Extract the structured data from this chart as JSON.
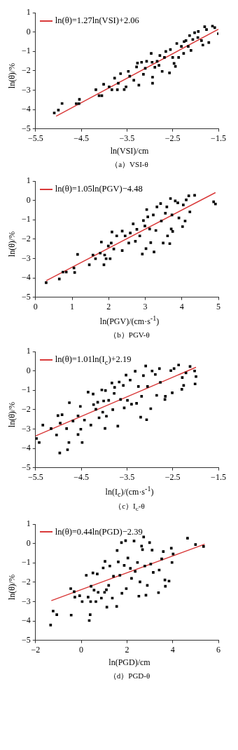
{
  "chart_data": [
    {
      "type": "scatter",
      "xlabel": "ln(VSI)/cm",
      "ylabel": "ln(θ)/%",
      "annotations": [
        "（a）VSI-θ"
      ],
      "xlim": [
        -5.5,
        -1.5
      ],
      "xticks": [
        -5.5,
        -4.5,
        -3.5,
        -2.5,
        -1.5
      ],
      "ylim": [
        -5,
        1
      ],
      "yticks": [
        -5,
        -4,
        -3,
        -2,
        -1,
        0,
        1
      ],
      "legend": "top left",
      "grid": false,
      "marker": "square",
      "series": [
        {
          "type": "scatter",
          "color": "#000000",
          "x": [
            -5.09,
            -5.0,
            -4.92,
            -4.61,
            -4.54,
            -4.55,
            -4.18,
            -4.11,
            -4.05,
            -4.01,
            -3.89,
            -3.83,
            -3.77,
            -3.71,
            -3.69,
            -3.64,
            -3.56,
            -3.52,
            -3.47,
            -3.44,
            -3.35,
            -3.29,
            -3.27,
            -3.24,
            -3.18,
            -3.14,
            -3.1,
            -2.97,
            -2.95,
            -2.94,
            -2.94,
            -2.89,
            -2.84,
            -2.78,
            -2.73,
            -2.68,
            -2.65,
            -2.57,
            -2.55,
            -2.47,
            -2.44,
            -2.41,
            -2.37,
            -2.31,
            -2.26,
            -2.21,
            -2.16,
            -2.13,
            -2.1,
            -2.02,
            -1.95,
            -1.87,
            -1.84,
            -1.8,
            -1.76,
            -1.71,
            -1.63,
            -1.58,
            -1.5,
            -1.94,
            -2.06,
            -2.25,
            -2.5,
            -2.8,
            -3.07
          ],
          "values": [
            -4.18,
            -4.03,
            -3.69,
            -3.7,
            -3.48,
            -3.7,
            -2.98,
            -3.29,
            -3.29,
            -2.7,
            -2.83,
            -2.98,
            -2.38,
            -2.98,
            -2.64,
            -2.15,
            -2.97,
            -2.83,
            -2.03,
            -2.28,
            -2.49,
            -1.8,
            -1.6,
            -2.74,
            -1.56,
            -2.18,
            -1.87,
            -1.1,
            -1.56,
            -2.64,
            -2.33,
            -1.82,
            -1.51,
            -1.21,
            -2.03,
            -1.31,
            -1.0,
            -2.11,
            -0.9,
            -1.62,
            -1.77,
            -0.59,
            -1.31,
            -0.74,
            -1.1,
            -0.44,
            -0.74,
            -0.18,
            -0.95,
            -0.03,
            -0.28,
            -0.44,
            -0.67,
            0.28,
            0.13,
            -0.54,
            0.31,
            0.23,
            -0.08,
            0.03,
            -0.38,
            -0.49,
            -1.31,
            -1.72,
            -1.51
          ]
        },
        {
          "type": "line",
          "name": "ln(θ)=1.27ln(VSI)+2.06",
          "color": "#d93a3a",
          "marker": "none",
          "x": [
            -5.05,
            -1.5
          ],
          "values": [
            -4.35,
            0.15
          ]
        }
      ]
    },
    {
      "type": "scatter",
      "xlabel": "ln(PGV)/(cm·s$^{-1}$)",
      "ylabel": "ln(θ)/%",
      "annotations": [
        "（b）PGV-θ"
      ],
      "xlim": [
        0,
        5
      ],
      "xticks": [
        0,
        1,
        2,
        3,
        4,
        5
      ],
      "ylim": [
        -5,
        1
      ],
      "yticks": [
        -5,
        -4,
        -3,
        -2,
        -1,
        0,
        1
      ],
      "legend": "top left",
      "grid": false,
      "marker": "square",
      "series": [
        {
          "type": "scatter",
          "color": "#000000",
          "x": [
            0.29,
            0.65,
            0.75,
            0.84,
            1.05,
            1.07,
            1.15,
            1.47,
            1.57,
            1.64,
            1.77,
            1.8,
            1.87,
            1.89,
            1.93,
            1.99,
            2.04,
            2.07,
            2.09,
            2.14,
            2.22,
            2.37,
            2.37,
            2.45,
            2.55,
            2.59,
            2.67,
            2.73,
            2.77,
            2.85,
            2.92,
            2.95,
            2.99,
            3.02,
            3.04,
            3.07,
            3.12,
            3.15,
            3.22,
            3.24,
            3.29,
            3.32,
            3.42,
            3.44,
            3.49,
            3.55,
            3.59,
            3.61,
            3.67,
            3.71,
            3.73,
            3.75,
            3.69,
            3.82,
            3.89,
            3.92,
            4.02,
            4.04,
            4.09,
            4.12,
            4.19,
            4.22,
            4.35,
            4.87,
            4.92
          ],
          "values": [
            -4.25,
            -4.06,
            -3.7,
            -3.7,
            -3.49,
            -3.72,
            -2.79,
            -3.32,
            -2.82,
            -3.01,
            -2.72,
            -2.15,
            -3.32,
            -2.82,
            -3.01,
            -2.35,
            -3.01,
            -2.2,
            -1.63,
            -2.51,
            -1.83,
            -1.58,
            -2.59,
            -1.83,
            -2.2,
            -1.68,
            -1.21,
            -2.11,
            -1.49,
            -1.83,
            -2.77,
            -1.04,
            -1.32,
            -2.49,
            -0.47,
            -0.85,
            -1.47,
            -2.18,
            -0.75,
            -2.66,
            -1.55,
            -0.33,
            -0.16,
            -1.06,
            -2.2,
            -0.66,
            -0.33,
            -1.83,
            -2.23,
            -1.47,
            -0.75,
            -1.6,
            0.1,
            -0.02,
            -0.12,
            -0.9,
            -1.35,
            -0.23,
            -1.06,
            0.03,
            0.24,
            -0.59,
            0.27,
            -0.07,
            -0.18
          ]
        },
        {
          "type": "line",
          "name": "ln(θ)=1.05ln(PGV)−4.48",
          "color": "#d93a3a",
          "marker": "none",
          "x": [
            0.29,
            4.92
          ],
          "values": [
            -4.15,
            0.41
          ]
        }
      ]
    },
    {
      "type": "scatter",
      "xlabel": "ln(I$_{c}$)/(cm·s$^{-1}$)",
      "ylabel": "ln(θ)/%",
      "annotations": [
        "（c）I$_{c}$-θ"
      ],
      "xlim": [
        -5.5,
        -1.5
      ],
      "xticks": [
        -5.5,
        -4.5,
        -3.5,
        -2.5,
        -1.5
      ],
      "ylim": [
        -5,
        1
      ],
      "yticks": [
        -5,
        -4,
        -3,
        -2,
        -1,
        0,
        1
      ],
      "legend": "top left",
      "grid": false,
      "marker": "square",
      "series": [
        {
          "type": "scatter",
          "color": "#000000",
          "x": [
            -5.48,
            -5.42,
            -5.34,
            -5.16,
            -5.04,
            -5.01,
            -4.97,
            -4.96,
            -4.92,
            -4.82,
            -4.8,
            -4.77,
            -4.76,
            -4.68,
            -4.57,
            -4.57,
            -4.52,
            -4.51,
            -4.48,
            -4.43,
            -4.35,
            -4.29,
            -4.24,
            -4.23,
            -4.18,
            -4.14,
            -4.11,
            -4.05,
            -4.03,
            -4.01,
            -3.98,
            -3.97,
            -3.95,
            -3.9,
            -3.83,
            -3.81,
            -3.78,
            -3.77,
            -3.7,
            -3.67,
            -3.64,
            -3.58,
            -3.56,
            -3.52,
            -3.49,
            -3.43,
            -3.4,
            -3.32,
            -3.29,
            -3.25,
            -3.2,
            -3.18,
            -3.14,
            -3.09,
            -3.07,
            -3.05,
            -2.98,
            -2.95,
            -2.88,
            -2.85,
            -2.79,
            -2.77,
            -2.67,
            -2.66,
            -2.54,
            -2.51,
            -2.47,
            -2.37,
            -2.3,
            -2.29,
            -2.26,
            -2.21,
            -2.12,
            -2.02,
            -2.01,
            -1.99
          ],
          "values": [
            -3.49,
            -3.7,
            -2.8,
            -2.98,
            -3.31,
            -2.31,
            -4.24,
            -2.7,
            -2.26,
            -2.98,
            -4.07,
            -3.7,
            -1.64,
            -2.59,
            -2.32,
            -3.29,
            -1.83,
            -3.01,
            -3.7,
            -2.54,
            -1.09,
            -2.8,
            -1.19,
            -1.74,
            -1.98,
            -1.62,
            -2.42,
            -0.98,
            -2.13,
            -1.55,
            -2.97,
            -1.01,
            -2.34,
            -1.52,
            -0.62,
            -2.0,
            -1.16,
            -0.85,
            -2.85,
            -0.57,
            -1.47,
            -0.75,
            -1.91,
            -0.21,
            -1.52,
            -0.47,
            -1.72,
            -0.01,
            -1.67,
            -0.8,
            -2.39,
            -1.31,
            -0.24,
            0.26,
            -2.52,
            -0.8,
            -1.95,
            0.0,
            -0.18,
            -1.26,
            0.12,
            -0.59,
            -1.47,
            -1.31,
            0.02,
            -1.13,
            0.12,
            0.31,
            -0.95,
            -0.34,
            -0.75,
            -0.1,
            0.23,
            0.0,
            -0.67,
            -0.29
          ]
        },
        {
          "type": "line",
          "name": "ln(θ)=1.01ln(I$_{c}$)+2.19",
          "color": "#d93a3a",
          "marker": "none",
          "x": [
            -5.5,
            -1.99
          ],
          "values": [
            -3.36,
            0.19
          ]
        }
      ]
    },
    {
      "type": "scatter",
      "xlabel": "ln(PGD)/cm",
      "ylabel": "ln(θ)/%",
      "annotations": [
        "（d）PGD-θ"
      ],
      "xlim": [
        -2,
        6
      ],
      "xticks": [
        -2,
        0,
        2,
        4,
        6
      ],
      "ylim": [
        -5,
        1
      ],
      "yticks": [
        -5,
        -4,
        -3,
        -2,
        -1,
        0,
        1
      ],
      "legend": "top left",
      "grid": false,
      "marker": "square",
      "series": [
        {
          "type": "scatter",
          "color": "#000000",
          "x": [
            -1.34,
            -1.23,
            -1.07,
            -0.46,
            -0.44,
            -0.31,
            -0.28,
            -0.07,
            0.04,
            0.22,
            0.3,
            0.35,
            0.39,
            0.41,
            0.43,
            0.51,
            0.56,
            0.64,
            0.7,
            0.74,
            0.88,
            0.96,
            1.02,
            1.04,
            1.1,
            1.12,
            1.2,
            1.25,
            1.36,
            1.41,
            1.55,
            1.57,
            1.62,
            1.69,
            1.76,
            1.78,
            1.88,
            1.94,
            1.97,
            2.04,
            2.15,
            2.2,
            2.31,
            2.36,
            2.46,
            2.52,
            2.57,
            2.64,
            2.68,
            2.73,
            2.78,
            2.83,
            2.89,
            2.99,
            3.04,
            3.1,
            3.15,
            3.38,
            3.41,
            3.52,
            3.59,
            3.66,
            3.68,
            3.84,
            3.94,
            3.97,
            4.02,
            4.65,
            5.0,
            5.35
          ],
          "values": [
            -4.21,
            -3.49,
            -3.68,
            -2.33,
            -3.7,
            -2.49,
            -2.77,
            -2.7,
            -3.0,
            -1.64,
            -2.77,
            -3.98,
            -3.68,
            -3.0,
            -2.21,
            -1.52,
            -2.41,
            -3.0,
            -1.57,
            -2.52,
            -2.82,
            -1.26,
            -2.52,
            -0.92,
            -2.39,
            -3.29,
            -2.16,
            -1.16,
            -2.82,
            -1.69,
            -3.25,
            -0.36,
            -0.95,
            -1.64,
            0.05,
            -2.57,
            -1.13,
            0.15,
            -2.33,
            -0.75,
            -1.28,
            -1.8,
            0.13,
            -1.44,
            -0.98,
            -2.72,
            -1.98,
            -0.13,
            -0.31,
            0.34,
            -1.16,
            -2.67,
            -2.16,
            0.05,
            -1.06,
            -0.34,
            -1.49,
            -2.54,
            -1.37,
            -0.79,
            -0.41,
            -1.88,
            -2.21,
            -1.94,
            -0.24,
            -0.98,
            -0.54,
            0.28,
            -0.05,
            -0.15
          ]
        },
        {
          "type": "line",
          "name": "ln(θ)=0.44ln(PGD)−2.39",
          "color": "#d93a3a",
          "marker": "none",
          "x": [
            -1.31,
            5.4
          ],
          "values": [
            -2.95,
            -0.03
          ]
        }
      ]
    }
  ]
}
